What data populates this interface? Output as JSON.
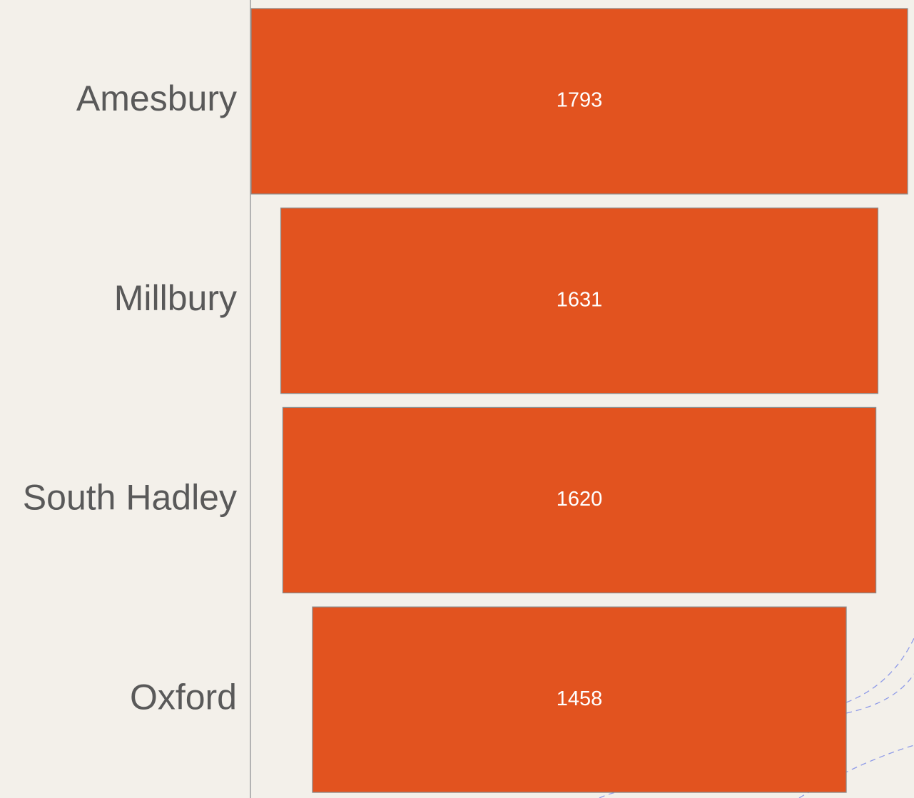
{
  "chart_data": {
    "type": "funnel",
    "categories": [
      "Amesbury",
      "Millbury",
      "South Hadley",
      "Oxford"
    ],
    "values": [
      1793,
      1631,
      1620,
      1458
    ],
    "color": "#e2531f"
  }
}
